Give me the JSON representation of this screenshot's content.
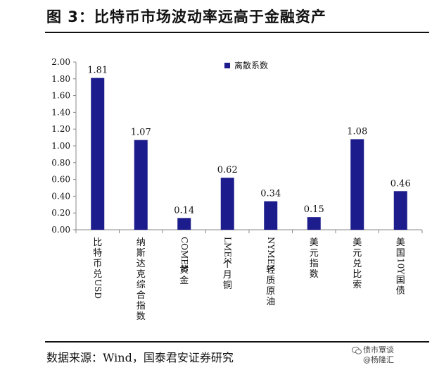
{
  "figure": {
    "title": "图 3：比特币市场波动率远高于金融资产",
    "source": "数据来源：Wind，国泰君安证券研究",
    "watermark_line1": "债市覃谈",
    "watermark_line2": "@杨隆汇"
  },
  "colors": {
    "bar": "#1c1c8c",
    "axis": "#888888",
    "text": "#111111"
  },
  "chart_data": {
    "type": "bar",
    "categories": [
      "比特币兑USD",
      "纳斯达克综合指数",
      "COMEX黄金",
      "LME3个月铜",
      "NYMEX轻质原油",
      "美元指数",
      "美元兑比索",
      "美国10Y国债"
    ],
    "series": [
      {
        "name": "离散系数",
        "values": [
          1.81,
          1.07,
          0.14,
          0.62,
          0.34,
          0.15,
          1.08,
          0.46
        ]
      }
    ],
    "data_labels": [
      "1.81",
      "1.07",
      "0.14",
      "0.62",
      "0.34",
      "0.15",
      "1.08",
      "0.46"
    ],
    "yticks": [
      "0.00",
      "0.20",
      "0.40",
      "0.60",
      "0.80",
      "1.00",
      "1.20",
      "1.40",
      "1.60",
      "1.80",
      "2.00"
    ],
    "ylim": [
      0,
      2.0
    ],
    "legend_position": "top-center",
    "grid": false
  }
}
